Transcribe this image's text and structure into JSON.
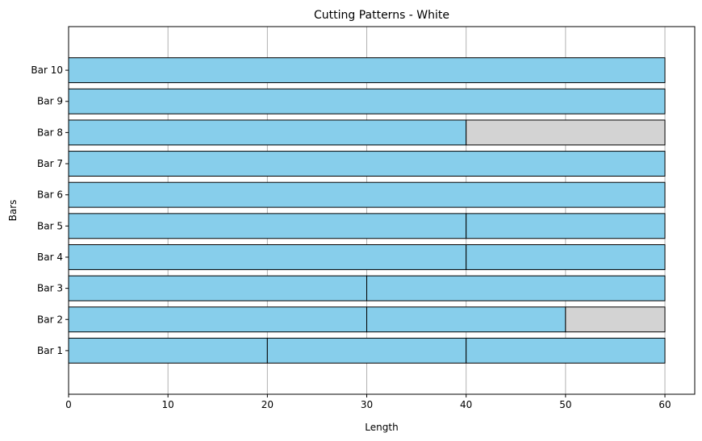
{
  "chart_data": {
    "type": "bar",
    "orientation": "horizontal",
    "stacked": true,
    "title": "Cutting Patterns - White",
    "xlabel": "Length",
    "ylabel": "Bars",
    "xlim": [
      0,
      63
    ],
    "xticks": [
      0,
      10,
      20,
      30,
      40,
      50,
      60
    ],
    "grid": "vertical",
    "piece_color": "#87ceeb",
    "waste_color": "#d3d3d3",
    "edge_color": "#000000",
    "categories": [
      "Bar 1",
      "Bar 2",
      "Bar 3",
      "Bar 4",
      "Bar 5",
      "Bar 6",
      "Bar 7",
      "Bar 8",
      "Bar 9",
      "Bar 10"
    ],
    "segments": [
      [
        {
          "length": 20,
          "kind": "piece"
        },
        {
          "length": 20,
          "kind": "piece"
        },
        {
          "length": 20,
          "kind": "piece"
        }
      ],
      [
        {
          "length": 30,
          "kind": "piece"
        },
        {
          "length": 20,
          "kind": "piece"
        },
        {
          "length": 10,
          "kind": "waste"
        }
      ],
      [
        {
          "length": 30,
          "kind": "piece"
        },
        {
          "length": 30,
          "kind": "piece"
        }
      ],
      [
        {
          "length": 40,
          "kind": "piece"
        },
        {
          "length": 20,
          "kind": "piece"
        }
      ],
      [
        {
          "length": 40,
          "kind": "piece"
        },
        {
          "length": 20,
          "kind": "piece"
        }
      ],
      [
        {
          "length": 60,
          "kind": "piece"
        }
      ],
      [
        {
          "length": 60,
          "kind": "piece"
        }
      ],
      [
        {
          "length": 40,
          "kind": "piece"
        },
        {
          "length": 20,
          "kind": "waste"
        }
      ],
      [
        {
          "length": 60,
          "kind": "piece"
        }
      ],
      [
        {
          "length": 60,
          "kind": "piece"
        }
      ]
    ]
  }
}
